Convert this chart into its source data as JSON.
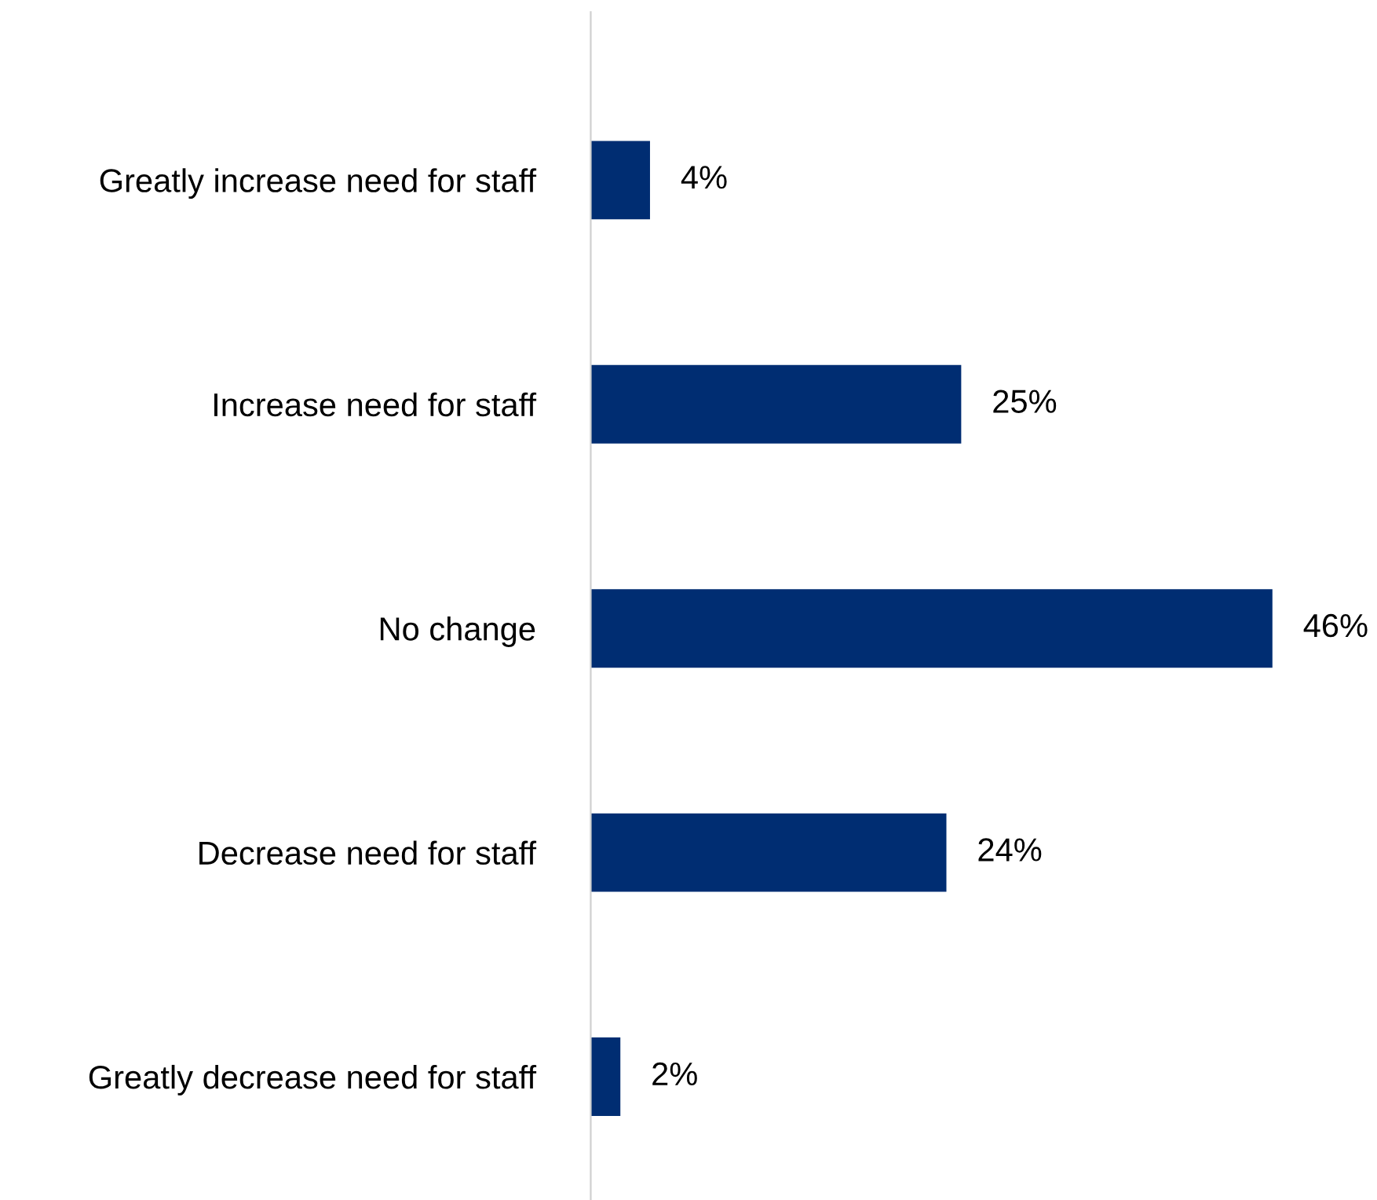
{
  "chart_data": {
    "type": "bar",
    "orientation": "horizontal",
    "categories": [
      "Greatly increase need for staff",
      "Increase need for staff",
      "No change",
      "Decrease need for staff",
      "Greatly decrease need for staff"
    ],
    "values": [
      4,
      25,
      46,
      24,
      2
    ],
    "value_labels": [
      "4%",
      "25%",
      "46%",
      "24%",
      "2%"
    ],
    "color": "#002d72",
    "grid": false,
    "legend": false
  }
}
